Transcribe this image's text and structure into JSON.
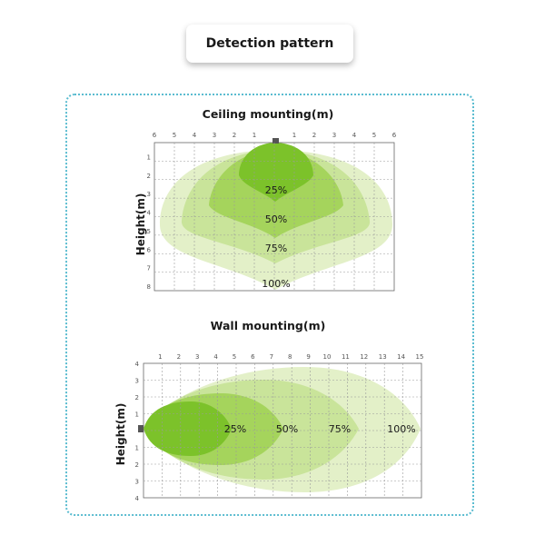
{
  "header": {
    "title": "Detection pattern"
  },
  "ceiling": {
    "title": "Ceiling mounting(m)",
    "ylabel": "Height(m)",
    "x_ticks": [
      "6",
      "5",
      "4",
      "3",
      "2",
      "1",
      "",
      "1",
      "2",
      "3",
      "4",
      "5",
      "6"
    ],
    "y_ticks": [
      "1",
      "2",
      "3",
      "4",
      "5",
      "6",
      "7",
      "8"
    ],
    "zones": [
      "25%",
      "50%",
      "75%",
      "100%"
    ]
  },
  "wall": {
    "title": "Wall mounting(m)",
    "ylabel": "Height(m)",
    "x_ticks": [
      "1",
      "2",
      "3",
      "4",
      "5",
      "6",
      "7",
      "8",
      "9",
      "10",
      "11",
      "12",
      "13",
      "14",
      "15"
    ],
    "y_ticks": [
      "4",
      "3",
      "2",
      "1",
      "",
      "1",
      "2",
      "3",
      "4"
    ],
    "zones": [
      "25%",
      "50%",
      "75%",
      "100%"
    ]
  },
  "colors": {
    "zone_100": "#e3f0c8",
    "zone_75": "#c9e49a",
    "zone_50": "#a5d45c",
    "zone_25": "#7cc22a",
    "frame": "#5bbcd0"
  }
}
